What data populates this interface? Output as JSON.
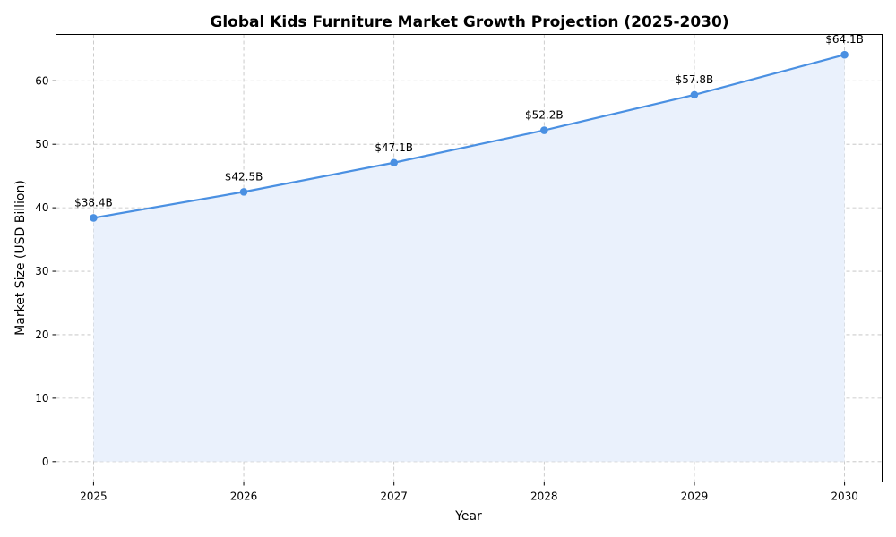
{
  "chart_data": {
    "type": "line",
    "title": "Global Kids Furniture Market Growth Projection (2025-2030)",
    "xlabel": "Year",
    "ylabel": "Market Size (USD Billion)",
    "x": [
      2025,
      2026,
      2027,
      2028,
      2029,
      2030
    ],
    "x_tick_labels": [
      "2025",
      "2026",
      "2027",
      "2028",
      "2029",
      "2030"
    ],
    "series": [
      {
        "values": [
          38.4,
          42.5,
          47.1,
          52.2,
          57.8,
          64.1
        ],
        "data_labels": [
          "$38.4B",
          "$42.5B",
          "$47.1B",
          "$52.2B",
          "$57.8B",
          "$64.1B"
        ],
        "color": "#4a90e2",
        "area_fill": "#eaf1fc",
        "marker": "circle"
      }
    ],
    "xlim": [
      2024.75,
      2030.25
    ],
    "ylim": [
      -3.2,
      67.3
    ],
    "y_ticks": [
      0,
      10,
      20,
      30,
      40,
      50,
      60
    ],
    "y_tick_labels": [
      "0",
      "10",
      "20",
      "30",
      "40",
      "50",
      "60"
    ],
    "grid": true,
    "legend": false
  }
}
